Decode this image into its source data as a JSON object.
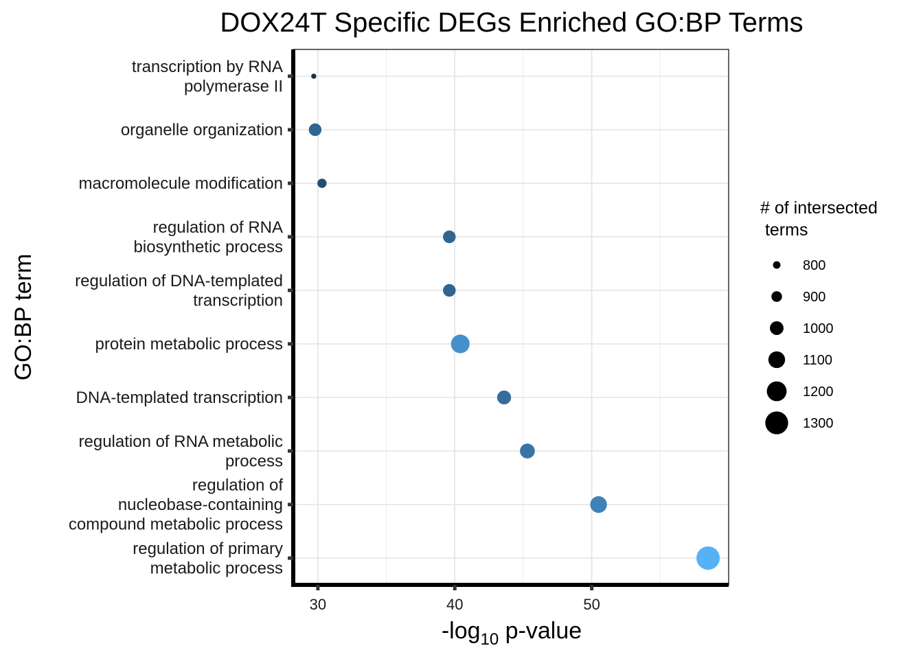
{
  "chart_data": {
    "type": "scatter",
    "title": "DOX24T Specific DEGs Enriched GO:BP Terms",
    "xlabel": {
      "prefix": "-log",
      "subscript": "10",
      "suffix": " p-value"
    },
    "ylabel": "GO:BP term",
    "xlim": [
      28.2,
      60
    ],
    "xticks": [
      30,
      40,
      50
    ],
    "x_minor_gridlines": [
      35,
      45,
      55
    ],
    "grid": true,
    "color_scale": {
      "low": "#132B43",
      "high": "#56B1F7"
    },
    "legend": {
      "title": [
        "# of intersected",
        " terms"
      ],
      "placement": "right",
      "sizes": [
        800,
        900,
        1000,
        1100,
        1200,
        1300
      ]
    },
    "size_range": [
      700,
      1300
    ],
    "color_range": [
      700,
      1300
    ],
    "points": [
      {
        "label": [
          "transcription by RNA",
          "polymerase II"
        ],
        "x": 29.7,
        "size": 720
      },
      {
        "label": [
          "organelle organization"
        ],
        "x": 29.8,
        "size": 960
      },
      {
        "label": [
          "macromolecule modification"
        ],
        "x": 30.3,
        "size": 850
      },
      {
        "label": [
          "regulation of RNA",
          "biosynthetic process"
        ],
        "x": 39.6,
        "size": 960
      },
      {
        "label": [
          "regulation of DNA-templated",
          "transcription"
        ],
        "x": 39.6,
        "size": 960
      },
      {
        "label": [
          "protein metabolic process"
        ],
        "x": 40.4,
        "size": 1150
      },
      {
        "label": [
          "DNA-templated transcription"
        ],
        "x": 43.6,
        "size": 1000
      },
      {
        "label": [
          "regulation of RNA metabolic",
          "process"
        ],
        "x": 45.3,
        "size": 1030
      },
      {
        "label": [
          "regulation of",
          "nucleobase-containing",
          "compound metabolic process"
        ],
        "x": 50.5,
        "size": 1090
      },
      {
        "label": [
          "regulation of primary",
          "metabolic process"
        ],
        "x": 58.5,
        "size": 1300
      }
    ]
  }
}
